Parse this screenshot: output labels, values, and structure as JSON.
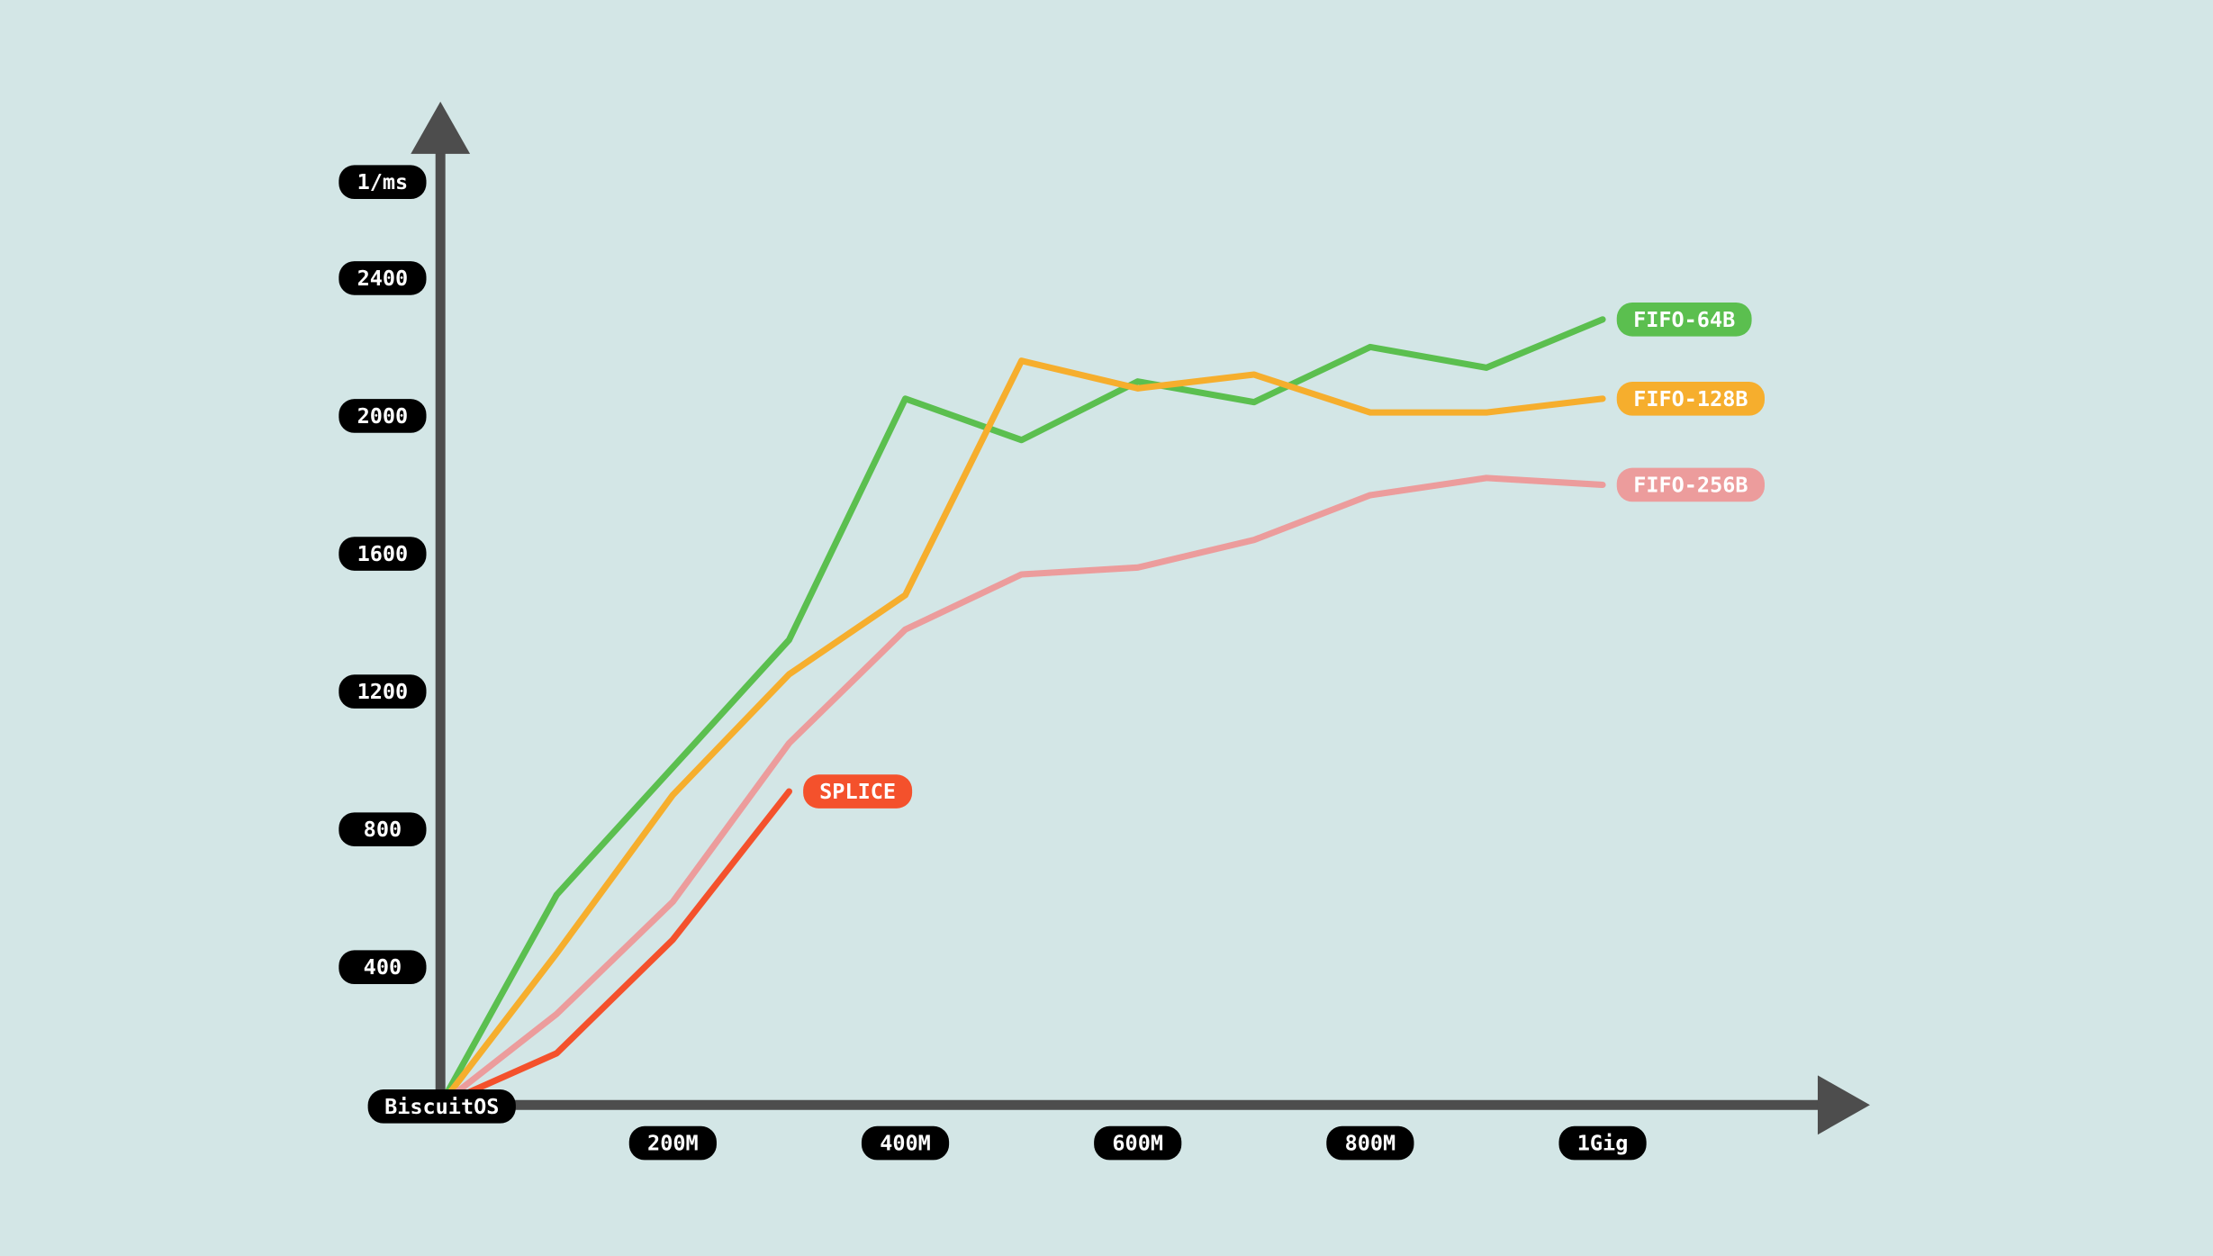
{
  "chart_data": {
    "type": "line",
    "y_label": "1/ms",
    "x_origin_label": "BiscuitOS",
    "x": [
      0,
      100,
      200,
      300,
      400,
      500,
      600,
      700,
      800,
      900,
      1000
    ],
    "xlim": [
      0,
      1230
    ],
    "ylim": [
      0,
      2900
    ],
    "xticks": [
      {
        "value": 200,
        "label": "200M"
      },
      {
        "value": 400,
        "label": "400M"
      },
      {
        "value": 600,
        "label": "600M"
      },
      {
        "value": 800,
        "label": "800M"
      },
      {
        "value": 1000,
        "label": "1Gig"
      }
    ],
    "yticks": [
      400,
      800,
      1200,
      1600,
      2000,
      2400
    ],
    "axis_color": "#4d4d4d",
    "tick_label_color": "#000000",
    "series": [
      {
        "name": "FIFO-64B",
        "color": "#5bbf4f",
        "values": [
          0,
          610,
          980,
          1350,
          2050,
          1930,
          2100,
          2040,
          2200,
          2140,
          2280
        ]
      },
      {
        "name": "FIFO-128B",
        "color": "#f6ae2d",
        "values": [
          0,
          440,
          900,
          1250,
          1480,
          2160,
          2080,
          2120,
          2010,
          2010,
          2050
        ]
      },
      {
        "name": "FIFO-256B",
        "color": "#ec9c9c",
        "values": [
          0,
          264,
          590,
          1050,
          1380,
          1540,
          1560,
          1640,
          1770,
          1820,
          1800
        ]
      },
      {
        "name": "SPLICE",
        "color": "#f4512c",
        "values": [
          0,
          150,
          480,
          910,
          null,
          null,
          null,
          null,
          null,
          null,
          null
        ]
      }
    ]
  }
}
